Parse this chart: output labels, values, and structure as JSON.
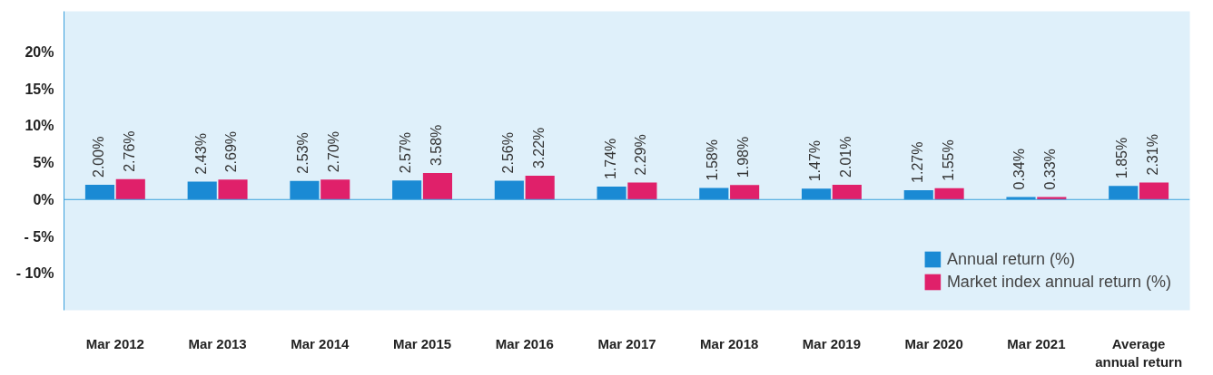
{
  "chart_data": {
    "type": "bar",
    "categories": [
      "Mar 2012",
      "Mar 2013",
      "Mar 2014",
      "Mar 2015",
      "Mar 2016",
      "Mar 2017",
      "Mar 2018",
      "Mar 2019",
      "Mar 2020",
      "Mar 2021",
      "Average\nannual return"
    ],
    "series": [
      {
        "name": "Annual return (%)",
        "color": "#1a8ad4",
        "values": [
          2.0,
          2.43,
          2.53,
          2.57,
          2.56,
          1.74,
          1.58,
          1.47,
          1.27,
          0.34,
          1.85
        ],
        "value_labels": [
          "2.00%",
          "2.43%",
          "2.53%",
          "2.57%",
          "2.56%",
          "1.74%",
          "1.58%",
          "1.47%",
          "1.27%",
          "0.34%",
          "1.85%"
        ]
      },
      {
        "name": "Market index annual return (%)",
        "color": "#e0206a",
        "values": [
          2.76,
          2.69,
          2.7,
          3.58,
          3.22,
          2.29,
          1.98,
          2.01,
          1.55,
          0.33,
          2.31
        ],
        "value_labels": [
          "2.76%",
          "2.69%",
          "2.70%",
          "3.58%",
          "3.22%",
          "2.29%",
          "1.98%",
          "2.01%",
          "1.55%",
          "0.33%",
          "2.31%"
        ]
      }
    ],
    "ylim": [
      -15,
      25.5
    ],
    "yticks": [
      {
        "value": -10,
        "label": "- 10%"
      },
      {
        "value": -5,
        "label": "- 5%"
      },
      {
        "value": 0,
        "label": "0%"
      },
      {
        "value": 5,
        "label": "5%"
      },
      {
        "value": 10,
        "label": "10%"
      },
      {
        "value": 15,
        "label": "15%"
      },
      {
        "value": 20,
        "label": "20%"
      }
    ],
    "grid": false,
    "ref_lines": [
      {
        "axis": "y",
        "value": 0,
        "color": "#3aa0dc"
      }
    ],
    "legend": "bottom right"
  }
}
